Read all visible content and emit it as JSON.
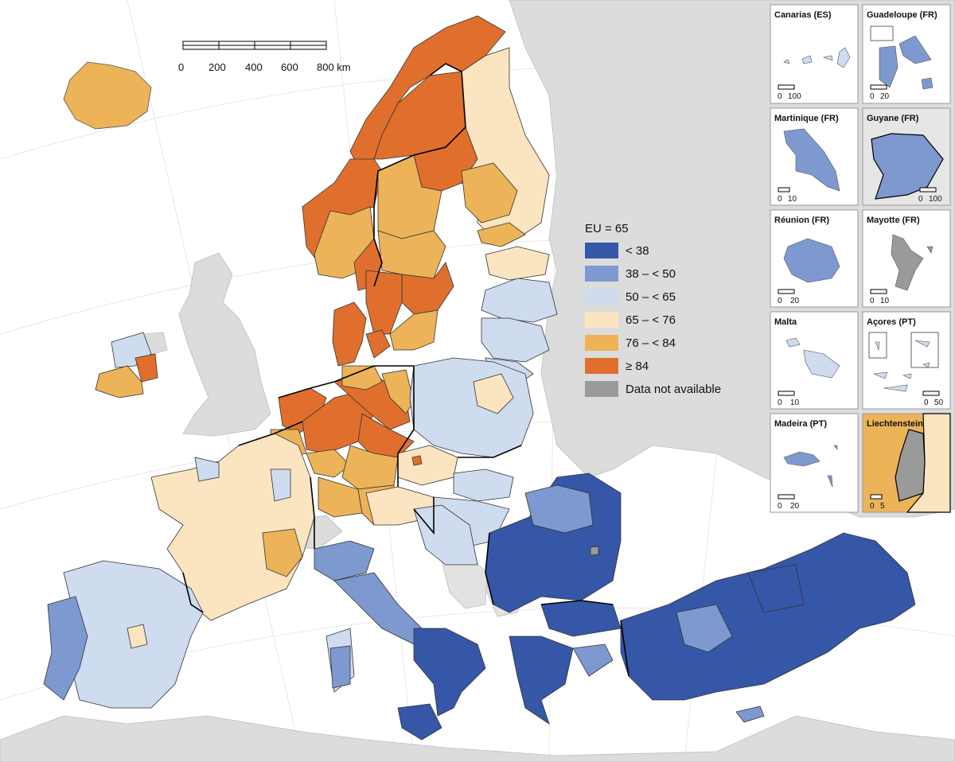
{
  "colors": {
    "lt38": "#3656a8",
    "c38_50": "#7e99cf",
    "c50_65": "#cfdcef",
    "c65_76": "#fbe4c0",
    "c76_84": "#ecb358",
    "ge84": "#e06f2e",
    "na": "#9a9a9a",
    "nonEU": "#dcdcdc",
    "sea": "#ffffff"
  },
  "scale": {
    "ticks": [
      "0",
      "200",
      "400",
      "600",
      "800 km"
    ]
  },
  "legend": {
    "title": "EU = 65",
    "items": [
      {
        "label": "< 38",
        "color_key": "lt38"
      },
      {
        "label": "38 – < 50",
        "color_key": "c38_50"
      },
      {
        "label": "50 – < 65",
        "color_key": "c50_65"
      },
      {
        "label": "65 – < 76",
        "color_key": "c65_76"
      },
      {
        "label": "76 – < 84",
        "color_key": "c76_84"
      },
      {
        "label": "≥ 84",
        "color_key": "ge84"
      },
      {
        "label": "Data not available",
        "color_key": "na"
      }
    ]
  },
  "insets": [
    {
      "title": "Canarias (ES)",
      "scale": [
        "0",
        "100"
      ]
    },
    {
      "title": "Guadeloupe (FR)",
      "scale": [
        "0",
        "20"
      ]
    },
    {
      "title": "Martinique (FR)",
      "scale": [
        "0",
        "10"
      ]
    },
    {
      "title": "Guyane (FR)",
      "scale": [
        "0",
        "100"
      ]
    },
    {
      "title": "Réunion (FR)",
      "scale": [
        "0",
        "20"
      ]
    },
    {
      "title": "Mayotte (FR)",
      "scale": [
        "0",
        "10"
      ]
    },
    {
      "title": "Malta",
      "scale": [
        "0",
        "10"
      ]
    },
    {
      "title": "Açores (PT)",
      "scale": [
        "0",
        "50"
      ]
    },
    {
      "title": "Madeira (PT)",
      "scale": [
        "0",
        "20"
      ]
    },
    {
      "title": "Liechtenstein",
      "scale": [
        "0",
        "5"
      ]
    }
  ]
}
